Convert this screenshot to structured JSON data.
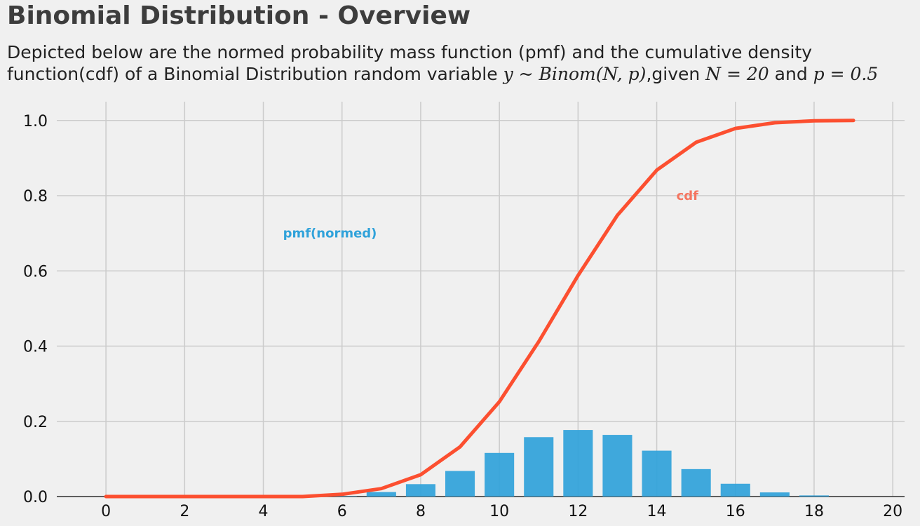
{
  "title": "Binomial Distribution - Overview",
  "subtitle": {
    "line1": "Depicted below are the normed probability mass function (pmf) and the cumulative density",
    "line2_a": " function(cdf) of a Binomial Distribution random variable ",
    "line2_math1": "y ~ Binom(N, p)",
    "line2_b": ",given ",
    "line2_math2": "N = 20",
    "line2_c": " and ",
    "line2_math3": "p = 0.5"
  },
  "colors": {
    "pmf": "#30a2da",
    "cdf": "#fc4f30",
    "cdf_label": "#f47560",
    "grid": "#cbcbcb",
    "background": "#f0f0f0",
    "axis_text": "#111111",
    "baseline": "#333333"
  },
  "chart_data": {
    "type": "bar+line",
    "xlim": [
      -1.25,
      20.3
    ],
    "ylim": [
      0,
      1.05
    ],
    "x_ticks": [
      0,
      2,
      4,
      6,
      8,
      10,
      12,
      14,
      16,
      18,
      20
    ],
    "y_ticks": [
      0.0,
      0.2,
      0.4,
      0.6,
      0.8,
      1.0
    ],
    "x_tick_labels": [
      "0",
      "2",
      "4",
      "6",
      "8",
      "10",
      "12",
      "14",
      "16",
      "18",
      "20"
    ],
    "y_tick_labels": [
      "0.0",
      "0.2",
      "0.4",
      "0.6",
      "0.8",
      "1.0"
    ],
    "grid": true,
    "pmf": {
      "label": "pmf(normed)",
      "label_position": [
        4.5,
        0.7
      ],
      "bar_width": 0.75,
      "x": [
        0,
        1,
        2,
        3,
        4,
        5,
        6,
        7,
        8,
        9,
        10,
        11,
        12,
        13,
        14,
        15,
        16,
        17,
        18,
        19
      ],
      "values": [
        0.0,
        0.0,
        0.0,
        0.0,
        0.0,
        0.0,
        0.001,
        0.012,
        0.033,
        0.068,
        0.116,
        0.158,
        0.177,
        0.164,
        0.122,
        0.073,
        0.034,
        0.011,
        0.003,
        0.0
      ]
    },
    "cdf": {
      "label": "cdf",
      "label_position": [
        14.5,
        0.8
      ],
      "x": [
        0,
        1,
        2,
        3,
        4,
        5,
        6,
        7,
        8,
        9,
        10,
        11,
        12,
        13,
        14,
        15,
        16,
        17,
        18,
        19
      ],
      "values": [
        0.0,
        0.0,
        0.0,
        0.0,
        0.0,
        0.0,
        0.006,
        0.021,
        0.058,
        0.132,
        0.252,
        0.412,
        0.588,
        0.748,
        0.868,
        0.942,
        0.979,
        0.994,
        0.999,
        1.0
      ]
    }
  }
}
